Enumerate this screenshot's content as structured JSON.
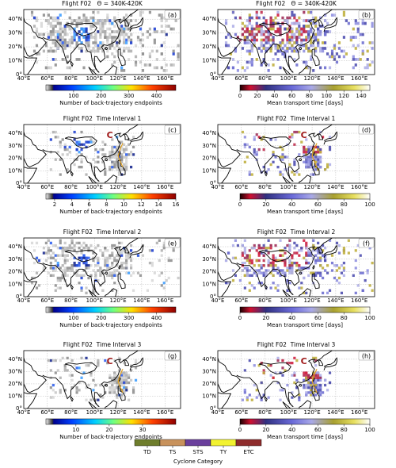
{
  "map_axes": {
    "xlim": [
      40,
      173
    ],
    "ylim": [
      0,
      47
    ],
    "xticks": [
      {
        "value": 40,
        "label": "40°E"
      },
      {
        "value": 60,
        "label": "60°E"
      },
      {
        "value": 80,
        "label": "80°E"
      },
      {
        "value": 100,
        "label": "100°E"
      },
      {
        "value": 120,
        "label": "120°E"
      },
      {
        "value": 140,
        "label": "140°E"
      },
      {
        "value": 160,
        "label": "160°E"
      }
    ],
    "yticks": [
      {
        "value": 0,
        "label": "0°"
      },
      {
        "value": 10,
        "label": "10°N"
      },
      {
        "value": 20,
        "label": "20°N"
      },
      {
        "value": 30,
        "label": "30°N"
      },
      {
        "value": 40,
        "label": "40°N"
      }
    ]
  },
  "panels": [
    {
      "title": "Flight F02   Θ = 340K-420K",
      "letter": "(a)",
      "colorbar": {
        "colormap": "count",
        "label": "Number of back-trajectory endpoints",
        "clim": [
          0,
          470
        ],
        "ticks": [
          100,
          200,
          300,
          400
        ]
      }
    },
    {
      "title": "Flight F02   Θ = 340K-420K",
      "letter": "(b)",
      "colorbar": {
        "colormap": "time",
        "label": "Mean transport time [days]",
        "clim": [
          0,
          150
        ],
        "ticks": [
          0,
          20,
          40,
          60,
          80,
          100,
          120,
          140
        ]
      }
    },
    {
      "title": "Flight F02  Time Interval 1",
      "letter": "(c)",
      "marker": "C",
      "colorbar": {
        "colormap": "count",
        "label": "Number of back-trajectory endpoints",
        "clim": [
          1,
          16
        ],
        "ticks": [
          2,
          4,
          6,
          8,
          10,
          12,
          14,
          16
        ]
      }
    },
    {
      "title": "Flight F02  Time Interval 1",
      "letter": "(d)",
      "marker": "C",
      "colorbar": {
        "colormap": "time",
        "label": "Mean transport time [days]",
        "clim": [
          0,
          100
        ],
        "ticks": [
          0,
          20,
          40,
          60,
          80,
          100
        ]
      }
    },
    {
      "title": "Flight F02  Time Interval 2",
      "letter": "(e)",
      "colorbar": {
        "colormap": "count",
        "label": "Number of back-trajectory endpoints",
        "clim": [
          0,
          470
        ],
        "ticks": [
          100,
          200,
          300,
          400
        ]
      }
    },
    {
      "title": "Flight F02  Time Interval 2",
      "letter": "(f)",
      "colorbar": {
        "colormap": "time",
        "label": "Mean transport time [days]",
        "clim": [
          0,
          100
        ],
        "ticks": [
          0,
          20,
          40,
          60,
          80,
          100
        ]
      }
    },
    {
      "title": "Flight F02  Time Interval 3",
      "letter": "(g)",
      "marker": "C",
      "colorbar": {
        "colormap": "count",
        "label": "Number of back-trajectory endpoints",
        "clim": [
          1,
          40
        ],
        "ticks": [
          10,
          20,
          30
        ]
      }
    },
    {
      "title": "Flight F02  Time Interval 3",
      "letter": "(h)",
      "marker": "C",
      "colorbar": {
        "colormap": "time",
        "label": "Mean transport time [days]",
        "clim": [
          0,
          100
        ],
        "ticks": [
          0,
          20,
          40,
          60,
          80,
          100
        ]
      }
    }
  ],
  "legend": {
    "title": "Cyclone Category",
    "items": [
      "TD",
      "TS",
      "STS",
      "TY",
      "ETC"
    ],
    "colors": [
      "#6e7d2c",
      "#c8925c",
      "#6a3f9c",
      "#f2f230",
      "#8e2c2c"
    ]
  }
}
